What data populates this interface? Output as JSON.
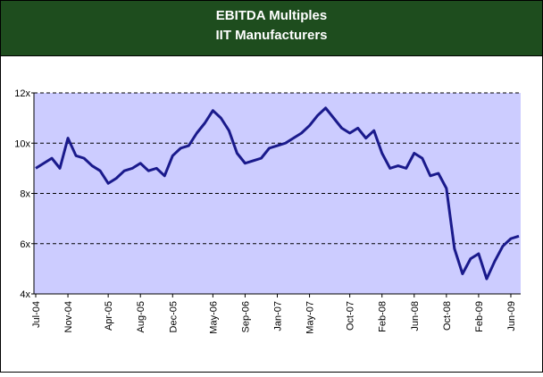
{
  "chart_data": {
    "type": "line",
    "title": "EBITDA Multiples",
    "subtitle": "IIT Manufacturers",
    "categories": [
      "Jul-04",
      null,
      null,
      null,
      "Nov-04",
      null,
      null,
      null,
      null,
      "Apr-05",
      null,
      null,
      null,
      "Aug-05",
      null,
      null,
      null,
      "Dec-05",
      null,
      null,
      null,
      null,
      "May-06",
      null,
      null,
      null,
      "Sep-06",
      null,
      null,
      null,
      "Jan-07",
      null,
      null,
      null,
      "May-07",
      null,
      null,
      null,
      null,
      "Oct-07",
      null,
      null,
      null,
      "Feb-08",
      null,
      null,
      null,
      "Jun-08",
      null,
      null,
      null,
      "Oct-08",
      null,
      null,
      null,
      "Feb-09",
      null,
      null,
      null,
      "Jun-09",
      null
    ],
    "series": [
      {
        "name": "EBITDA Multiple",
        "color": "#1a1a8c",
        "values": [
          9.0,
          9.2,
          9.4,
          9.0,
          10.2,
          9.5,
          9.4,
          9.1,
          8.9,
          8.4,
          8.6,
          8.9,
          9.0,
          9.2,
          8.9,
          9.0,
          8.7,
          9.5,
          9.8,
          9.9,
          10.4,
          10.8,
          11.3,
          11.0,
          10.5,
          9.6,
          9.2,
          9.3,
          9.4,
          9.8,
          9.9,
          10.0,
          10.2,
          10.4,
          10.7,
          11.1,
          11.4,
          11.0,
          10.6,
          10.4,
          10.6,
          10.2,
          10.5,
          9.6,
          9.0,
          9.1,
          9.0,
          9.6,
          9.4,
          8.7,
          8.8,
          8.2,
          5.8,
          4.8,
          5.4,
          5.6,
          4.6,
          5.3,
          5.9,
          6.2,
          6.3
        ]
      }
    ],
    "ylim": [
      4,
      12
    ],
    "yticks": [
      {
        "value": 4,
        "label": "4x"
      },
      {
        "value": 6,
        "label": "6x"
      },
      {
        "value": 8,
        "label": "8x"
      },
      {
        "value": 10,
        "label": "10x"
      },
      {
        "value": 12,
        "label": "12x"
      }
    ],
    "grid": true,
    "plot_color": "#ccccff"
  }
}
